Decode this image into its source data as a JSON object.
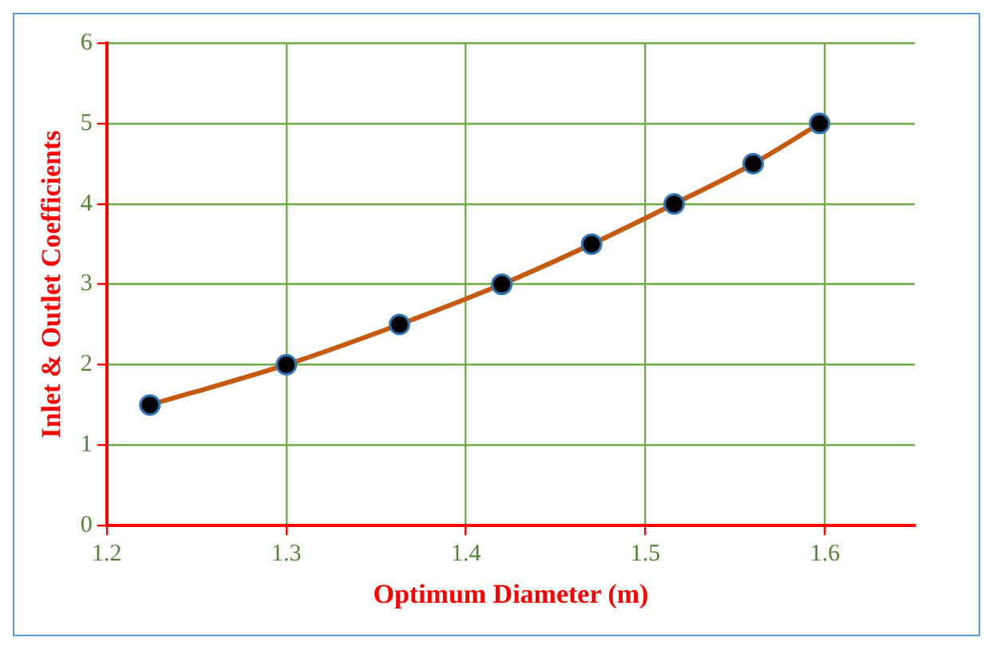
{
  "chart_data": {
    "type": "line",
    "xlabel": "Optimum Diameter (m)",
    "ylabel": "Inlet & Outlet Coefficients",
    "x": [
      1.224,
      1.3,
      1.363,
      1.42,
      1.47,
      1.516,
      1.56,
      1.597
    ],
    "series": [
      {
        "color": "#c55a11",
        "values": [
          1.5,
          2,
          2.5,
          3,
          3.5,
          4,
          4.5,
          5
        ]
      }
    ],
    "xlim": [
      1.2,
      1.65
    ],
    "xticks": [
      1.2,
      1.3,
      1.4,
      1.5,
      1.6
    ],
    "ylim": [
      0,
      6
    ],
    "yticks": [
      0,
      1,
      2,
      3,
      4,
      5,
      6
    ],
    "grid": true,
    "legend": false,
    "marker": "circle",
    "line_style": "solid"
  }
}
